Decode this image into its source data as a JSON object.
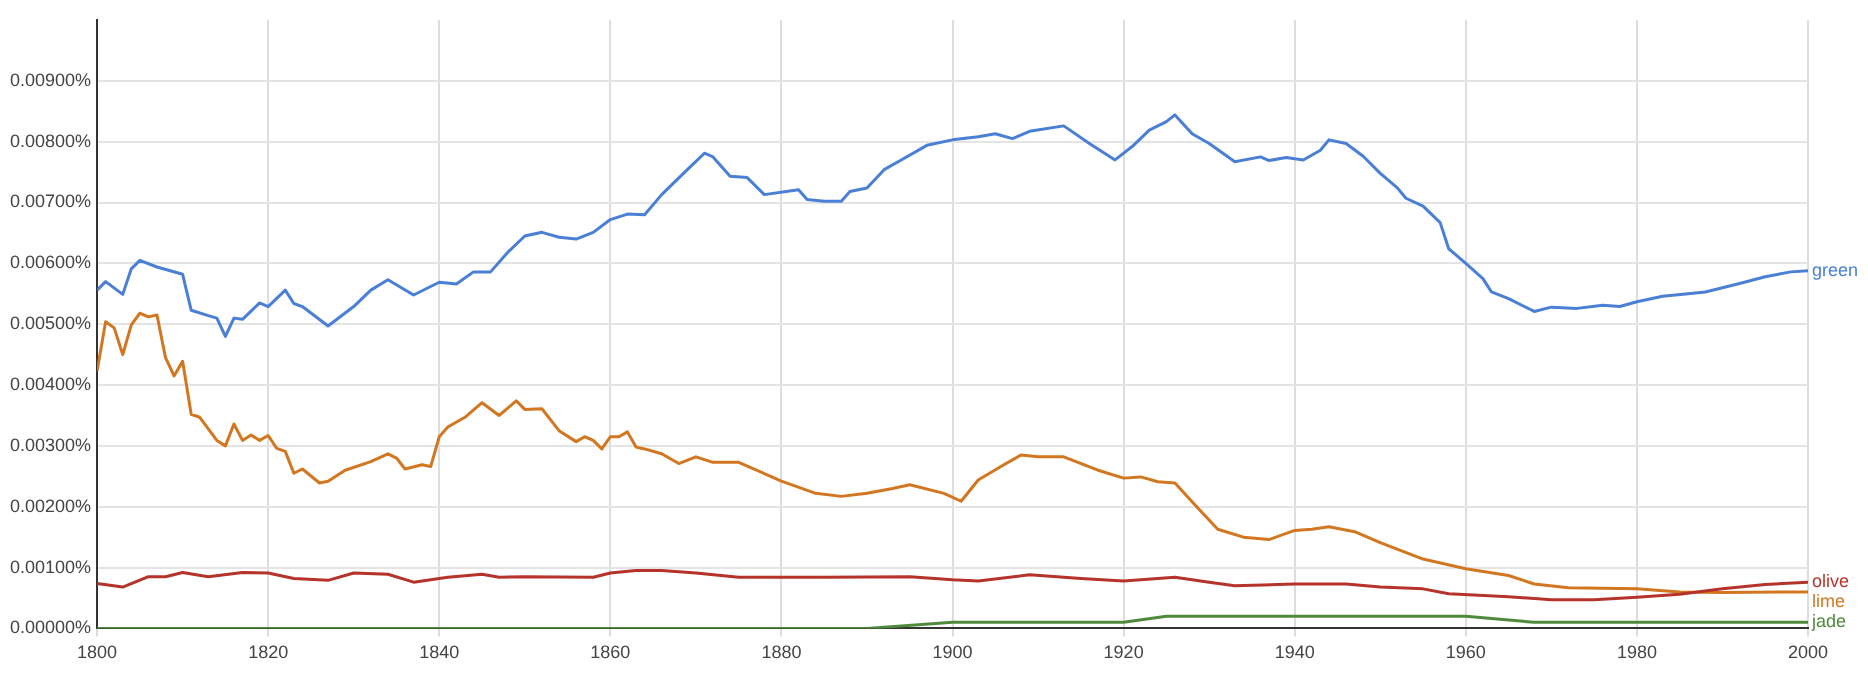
{
  "chart_data": {
    "type": "line",
    "marker": "none",
    "legend": false,
    "grid": true,
    "xlim": [
      1800,
      2000
    ],
    "xticks": [
      1800,
      1820,
      1840,
      1860,
      1880,
      1900,
      1920,
      1940,
      1960,
      1980,
      2000
    ],
    "ylim": [
      0,
      0.01
    ],
    "yticks": [
      {
        "value": 0,
        "label": "0.00000%"
      },
      {
        "value": 0.001,
        "label": "0.00100%"
      },
      {
        "value": 0.002,
        "label": "0.00200%"
      },
      {
        "value": 0.003,
        "label": "0.00300%"
      },
      {
        "value": 0.004,
        "label": "0.00400%"
      },
      {
        "value": 0.005,
        "label": "0.00500%"
      },
      {
        "value": 0.006,
        "label": "0.00600%"
      },
      {
        "value": 0.007,
        "label": "0.00700%"
      },
      {
        "value": 0.008,
        "label": "0.00800%"
      },
      {
        "value": 0.009,
        "label": "0.00900%"
      }
    ],
    "series": [
      {
        "name": "green",
        "color": "#4a7fd6",
        "x": [
          1800,
          1801,
          1803,
          1804,
          1805,
          1807,
          1810,
          1811,
          1813,
          1814,
          1815,
          1816,
          1817,
          1819,
          1820,
          1822,
          1823,
          1824,
          1827,
          1830,
          1832,
          1834,
          1837,
          1840,
          1842,
          1844,
          1846,
          1848,
          1850,
          1852,
          1854,
          1856,
          1858,
          1860,
          1862,
          1864,
          1866,
          1869,
          1871,
          1872,
          1874,
          1876,
          1878,
          1882,
          1883,
          1885,
          1887,
          1888,
          1890,
          1892,
          1894,
          1897,
          1900,
          1903,
          1905,
          1907,
          1909,
          1913,
          1916,
          1919,
          1921,
          1923,
          1925,
          1926,
          1928,
          1930,
          1933,
          1936,
          1937,
          1939,
          1941,
          1943,
          1944,
          1946,
          1948,
          1950,
          1952,
          1953,
          1955,
          1957,
          1958,
          1960,
          1962,
          1963,
          1965,
          1968,
          1970,
          1973,
          1976,
          1978,
          1980,
          1983,
          1986,
          1988,
          1992,
          1995,
          1998,
          2000
        ],
        "values": [
          0.00556,
          0.0057,
          0.00549,
          0.00591,
          0.00605,
          0.00594,
          0.00582,
          0.00523,
          0.00514,
          0.0051,
          0.0048,
          0.0051,
          0.00508,
          0.00535,
          0.00529,
          0.00556,
          0.00534,
          0.00529,
          0.00497,
          0.00529,
          0.00556,
          0.00573,
          0.00548,
          0.00569,
          0.00566,
          0.00586,
          0.00586,
          0.00618,
          0.00645,
          0.00651,
          0.00643,
          0.0064,
          0.00651,
          0.00672,
          0.00681,
          0.0068,
          0.00713,
          0.00754,
          0.00781,
          0.00775,
          0.00743,
          0.00741,
          0.00713,
          0.00721,
          0.00705,
          0.00702,
          0.00702,
          0.00718,
          0.00724,
          0.00754,
          0.0077,
          0.00794,
          0.00803,
          0.00808,
          0.00813,
          0.00805,
          0.00817,
          0.00826,
          0.00797,
          0.0077,
          0.00792,
          0.00819,
          0.00833,
          0.00844,
          0.00813,
          0.00797,
          0.00767,
          0.00775,
          0.00769,
          0.00774,
          0.0077,
          0.00786,
          0.00803,
          0.00797,
          0.00776,
          0.00748,
          0.00724,
          0.00707,
          0.00694,
          0.00667,
          0.00624,
          0.006,
          0.00575,
          0.00553,
          0.00542,
          0.00521,
          0.00528,
          0.00526,
          0.00531,
          0.00529,
          0.00537,
          0.00546,
          0.0055,
          0.00553,
          0.00567,
          0.00578,
          0.00586,
          0.00588
        ]
      },
      {
        "name": "olive",
        "color": "#b5332a",
        "x": [
          1800,
          1803,
          1806,
          1808,
          1810,
          1813,
          1817,
          1820,
          1823,
          1827,
          1830,
          1834,
          1837,
          1841,
          1845,
          1847,
          1850,
          1858,
          1860,
          1863,
          1866,
          1870,
          1875,
          1880,
          1885,
          1895,
          1900,
          1903,
          1909,
          1915,
          1920,
          1926,
          1930,
          1933,
          1940,
          1946,
          1950,
          1955,
          1958,
          1965,
          1970,
          1975,
          1980,
          1985,
          1990,
          1995,
          2000
        ],
        "values": [
          0.00074,
          0.00068,
          0.00085,
          0.00085,
          0.00092,
          0.00085,
          0.00092,
          0.00091,
          0.00082,
          0.00079,
          0.00091,
          0.00089,
          0.00076,
          0.00084,
          0.00089,
          0.00084,
          0.00085,
          0.00084,
          0.00091,
          0.00095,
          0.00095,
          0.00091,
          0.00084,
          0.00084,
          0.00084,
          0.00085,
          0.0008,
          0.00078,
          0.00088,
          0.00082,
          0.00078,
          0.00084,
          0.00076,
          0.0007,
          0.00073,
          0.00073,
          0.00068,
          0.00065,
          0.00057,
          0.00052,
          0.00047,
          0.00047,
          0.00051,
          0.00056,
          0.00065,
          0.00072,
          0.00076
        ]
      },
      {
        "name": "lime",
        "color": "#d2771f",
        "x": [
          1800,
          1801,
          1802,
          1803,
          1804,
          1805,
          1806,
          1807,
          1808,
          1809,
          1810,
          1811,
          1812,
          1814,
          1815,
          1816,
          1817,
          1818,
          1819,
          1820,
          1821,
          1822,
          1823,
          1824,
          1826,
          1827,
          1829,
          1832,
          1834,
          1835,
          1836,
          1838,
          1839,
          1840,
          1841,
          1843,
          1845,
          1847,
          1849,
          1850,
          1852,
          1854,
          1856,
          1857,
          1858,
          1859,
          1860,
          1861,
          1862,
          1863,
          1864,
          1866,
          1868,
          1870,
          1872,
          1875,
          1880,
          1884,
          1887,
          1890,
          1893,
          1895,
          1899,
          1901,
          1903,
          1906,
          1908,
          1910,
          1913,
          1917,
          1920,
          1922,
          1924,
          1926,
          1928,
          1931,
          1934,
          1937,
          1940,
          1942,
          1944,
          1947,
          1950,
          1955,
          1960,
          1965,
          1968,
          1972,
          1980,
          1985,
          1990,
          2000
        ],
        "values": [
          0.00423,
          0.00504,
          0.00494,
          0.0045,
          0.00499,
          0.00518,
          0.00512,
          0.00515,
          0.00445,
          0.00415,
          0.00439,
          0.00352,
          0.00347,
          0.00309,
          0.003,
          0.00336,
          0.00309,
          0.00318,
          0.00309,
          0.00317,
          0.00296,
          0.00291,
          0.00255,
          0.00262,
          0.00239,
          0.00242,
          0.0026,
          0.00274,
          0.00287,
          0.0028,
          0.00262,
          0.00269,
          0.00266,
          0.00315,
          0.00331,
          0.00347,
          0.00371,
          0.0035,
          0.00374,
          0.0036,
          0.00361,
          0.00325,
          0.00307,
          0.00315,
          0.00309,
          0.00295,
          0.00315,
          0.00315,
          0.00323,
          0.00298,
          0.00295,
          0.00287,
          0.00271,
          0.00282,
          0.00273,
          0.00273,
          0.00242,
          0.00222,
          0.00217,
          0.00222,
          0.0023,
          0.00236,
          0.00222,
          0.00209,
          0.00244,
          0.00269,
          0.00285,
          0.00282,
          0.00282,
          0.0026,
          0.00247,
          0.00249,
          0.00241,
          0.00239,
          0.00208,
          0.00163,
          0.0015,
          0.00146,
          0.00161,
          0.00163,
          0.00167,
          0.00159,
          0.00141,
          0.00114,
          0.00098,
          0.00087,
          0.00073,
          0.00067,
          0.00065,
          0.0006,
          0.00059,
          0.0006
        ]
      },
      {
        "name": "jade",
        "color": "#4f8a3c",
        "x": [
          1800,
          1820,
          1830,
          1860,
          1890,
          1900,
          1920,
          1925,
          1930,
          1940,
          1944,
          1950,
          1958,
          1960,
          1968,
          1980,
          1990,
          2000
        ],
        "values": [
          0,
          0,
          0,
          0,
          0,
          0.0001,
          0.0001,
          0.0002,
          0.0002,
          0.0002,
          0.0002,
          0.0002,
          0.0002,
          0.0002,
          0.0001,
          0.0001,
          0.0001,
          0.0001
        ]
      }
    ]
  }
}
